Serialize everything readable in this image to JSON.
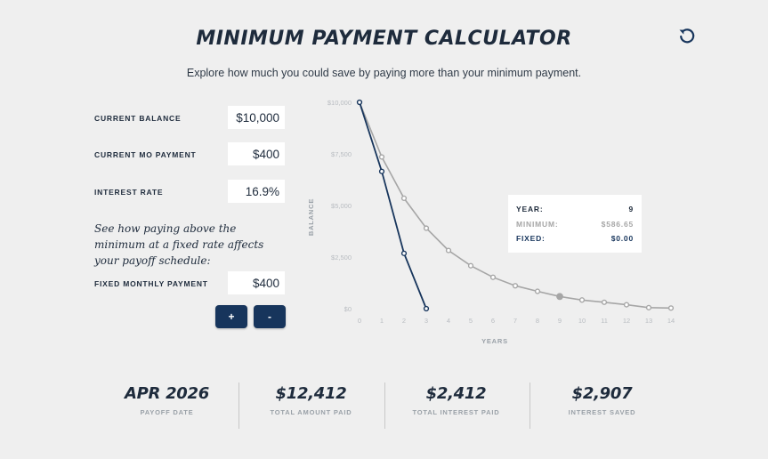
{
  "header": {
    "title": "MINIMUM PAYMENT CALCULATOR",
    "subtitle": "Explore how much you could save by paying more than your minimum payment."
  },
  "icons": {
    "reset": "reset-icon"
  },
  "inputs": {
    "current_balance": {
      "label": "CURRENT BALANCE",
      "value": "$10,000"
    },
    "current_payment": {
      "label": "CURRENT MO PAYMENT",
      "value": "$400"
    },
    "interest_rate": {
      "label": "INTEREST RATE",
      "value": "16.9%"
    },
    "note": "See how paying above the minimum at a fixed rate affects your payoff schedule:",
    "fixed_payment": {
      "label": "FIXED MONTHLY PAYMENT",
      "value": "$400"
    },
    "increment_label": "+",
    "decrement_label": "-"
  },
  "tooltip": {
    "year_label": "YEAR:",
    "year_value": "9",
    "minimum_label": "MINIMUM:",
    "minimum_value": "$586.65",
    "fixed_label": "FIXED:",
    "fixed_value": "$0.00"
  },
  "stats": [
    {
      "value": "APR 2026",
      "label": "PAYOFF DATE"
    },
    {
      "value": "$12,412",
      "label": "TOTAL AMOUNT PAID"
    },
    {
      "value": "$2,412",
      "label": "TOTAL INTEREST PAID"
    },
    {
      "value": "$2,907",
      "label": "INTEREST SAVED"
    }
  ],
  "colors": {
    "minimum": "#a6a6a6",
    "fixed": "#17355c",
    "accent": "#17355c"
  },
  "chart_data": {
    "type": "line",
    "xlabel": "YEARS",
    "ylabel": "BALANCE",
    "xlim": [
      0,
      14
    ],
    "ylim": [
      0,
      10000
    ],
    "x_ticks": [
      "0",
      "1",
      "2",
      "3",
      "4",
      "5",
      "6",
      "7",
      "8",
      "9",
      "10",
      "11",
      "12",
      "13",
      "14"
    ],
    "y_ticks": [
      {
        "value": 0,
        "label": "$0"
      },
      {
        "value": 2500,
        "label": "$2,500"
      },
      {
        "value": 5000,
        "label": "$5,000"
      },
      {
        "value": 7500,
        "label": "$7,500"
      },
      {
        "value": 10000,
        "label": "$10,000"
      }
    ],
    "grid": false,
    "highlight_x": 9,
    "series": [
      {
        "key": "minimum",
        "x": [
          0,
          1,
          2,
          3,
          4,
          5,
          6,
          7,
          8,
          9,
          10,
          11,
          12,
          13,
          14
        ],
        "values": [
          10000,
          7350,
          5350,
          3900,
          2820,
          2080,
          1520,
          1110,
          840,
          590,
          420,
          310,
          190,
          50,
          30
        ]
      },
      {
        "key": "fixed",
        "x": [
          0,
          1,
          2,
          3
        ],
        "values": [
          10000,
          6650,
          2680,
          0
        ]
      }
    ]
  }
}
